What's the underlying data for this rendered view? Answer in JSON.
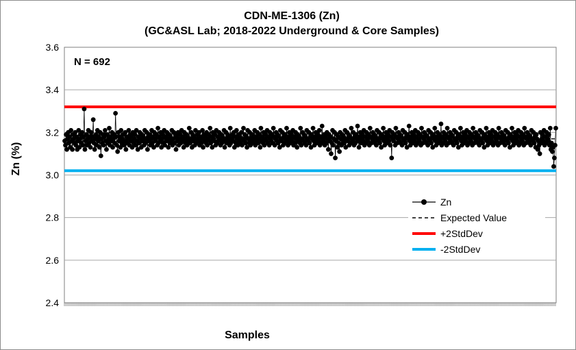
{
  "chart_data": {
    "type": "line",
    "title": "CDN-ME-1306 (Zn)",
    "subtitle": "(GC&ASL Lab; 2018-2022 Underground & Core Samples)",
    "xlabel": "Samples",
    "ylabel": "Zn (%)",
    "ylim": [
      2.4,
      3.6
    ],
    "y_ticks": [
      "2.4",
      "2.6",
      "2.8",
      "3.0",
      "3.2",
      "3.4",
      "3.6"
    ],
    "grid": true,
    "legend_position": "lower-right",
    "annotation": "N = 692",
    "n_samples": 692,
    "series": [
      {
        "name": "Zn",
        "color": "#000000",
        "marker": "circle",
        "values": [
          3.16,
          3.14,
          3.19,
          3.12,
          3.17,
          3.2,
          3.15,
          3.18,
          3.13,
          3.21,
          3.16,
          3.12,
          3.19,
          3.17,
          3.15,
          3.2,
          3.14,
          3.18,
          3.12,
          3.16,
          3.21,
          3.13,
          3.17,
          3.19,
          3.15,
          3.2,
          3.14,
          3.18,
          3.31,
          3.12,
          3.16,
          3.19,
          3.14,
          3.17,
          3.21,
          3.15,
          3.18,
          3.13,
          3.2,
          3.16,
          3.18,
          3.26,
          3.15,
          3.12,
          3.17,
          3.19,
          3.14,
          3.21,
          3.16,
          3.18,
          3.13,
          3.2,
          3.09,
          3.17,
          3.15,
          3.19,
          3.14,
          3.18,
          3.21,
          3.16,
          3.12,
          3.19,
          3.15,
          3.17,
          3.22,
          3.14,
          3.18,
          3.16,
          3.2,
          3.13,
          3.17,
          3.19,
          3.15,
          3.29,
          3.18,
          3.14,
          3.11,
          3.2,
          3.16,
          3.18,
          3.13,
          3.21,
          3.15,
          3.17,
          3.19,
          3.14,
          3.16,
          3.2,
          3.12,
          3.18,
          3.15,
          3.17,
          3.21,
          3.14,
          3.19,
          3.16,
          3.18,
          3.13,
          3.2,
          3.15,
          3.17,
          3.19,
          3.14,
          3.21,
          3.16,
          3.12,
          3.18,
          3.15,
          3.2,
          3.17,
          3.13,
          3.19,
          3.16,
          3.18,
          3.14,
          3.21,
          3.15,
          3.17,
          3.2,
          3.12,
          3.18,
          3.16,
          3.19,
          3.14,
          3.17,
          3.21,
          3.15,
          3.18,
          3.13,
          3.2,
          3.16,
          3.17,
          3.19,
          3.14,
          3.22,
          3.15,
          3.18,
          3.16,
          3.2,
          3.13,
          3.17,
          3.19,
          3.15,
          3.21,
          3.14,
          3.18,
          3.16,
          3.2,
          3.17,
          3.13,
          3.19,
          3.15,
          3.18,
          3.16,
          3.21,
          3.14,
          3.17,
          3.2,
          3.15,
          3.19,
          3.12,
          3.18,
          3.16,
          3.2,
          3.14,
          3.17,
          3.19,
          3.15,
          3.21,
          3.16,
          3.18,
          3.13,
          3.2,
          3.17,
          3.15,
          3.19,
          3.14,
          3.18,
          3.16,
          3.22,
          3.15,
          3.17,
          3.2,
          3.13,
          3.19,
          3.16,
          3.18,
          3.14,
          3.21,
          3.15,
          3.17,
          3.19,
          3.16,
          3.2,
          3.14,
          3.18,
          3.15,
          3.17,
          3.21,
          3.13,
          3.19,
          3.16,
          3.18,
          3.15,
          3.2,
          3.14,
          3.17,
          3.19,
          3.16,
          3.22,
          3.15,
          3.18,
          3.13,
          3.2,
          3.17,
          3.16,
          3.19,
          3.14,
          3.21,
          3.15,
          3.18,
          3.16,
          3.2,
          3.17,
          3.14,
          3.19,
          3.15,
          3.18,
          3.16,
          3.21,
          3.13,
          3.17,
          3.2,
          3.15,
          3.19,
          3.16,
          3.18,
          3.14,
          3.22,
          3.15,
          3.17,
          3.19,
          3.16,
          3.2,
          3.13,
          3.18,
          3.15,
          3.21,
          3.17,
          3.14,
          3.19,
          3.16,
          3.18,
          3.15,
          3.2,
          3.14,
          3.17,
          3.22,
          3.16,
          3.19,
          3.15,
          3.18,
          3.13,
          3.21,
          3.17,
          3.15,
          3.2,
          3.14,
          3.18,
          3.16,
          3.19,
          3.15,
          3.17,
          3.21,
          3.14,
          3.18,
          3.16,
          3.2,
          3.15,
          3.17,
          3.19,
          3.13,
          3.22,
          3.16,
          3.18,
          3.15,
          3.2,
          3.14,
          3.17,
          3.19,
          3.16,
          3.21,
          3.15,
          3.18,
          3.14,
          3.2,
          3.17,
          3.16,
          3.19,
          3.15,
          3.22,
          3.18,
          3.14,
          3.17,
          3.2,
          3.16,
          3.19,
          3.15,
          3.18,
          3.13,
          3.21,
          3.17,
          3.16,
          3.2,
          3.14,
          3.18,
          3.15,
          3.19,
          3.17,
          3.22,
          3.16,
          3.14,
          3.18,
          3.2,
          3.15,
          3.17,
          3.19,
          3.16,
          3.21,
          3.14,
          3.18,
          3.15,
          3.2,
          3.17,
          3.13,
          3.19,
          3.16,
          3.18,
          3.15,
          3.22,
          3.14,
          3.17,
          3.2,
          3.16,
          3.19,
          3.15,
          3.18,
          3.14,
          3.21,
          3.17,
          3.16,
          3.2,
          3.15,
          3.18,
          3.13,
          3.19,
          3.17,
          3.22,
          3.16,
          3.14,
          3.18,
          3.2,
          3.15,
          3.17,
          3.19,
          3.16,
          3.21,
          3.14,
          3.18,
          3.15,
          3.23,
          3.17,
          3.16,
          3.19,
          3.14,
          3.18,
          3.15,
          3.2,
          3.17,
          3.12,
          3.19,
          3.16,
          3.18,
          3.1,
          3.15,
          3.21,
          3.14,
          3.17,
          3.2,
          3.08,
          3.16,
          3.19,
          3.13,
          3.18,
          3.15,
          3.11,
          3.2,
          3.17,
          3.14,
          3.19,
          3.16,
          3.18,
          3.15,
          3.21,
          3.13,
          3.17,
          3.2,
          3.16,
          3.19,
          3.14,
          3.18,
          3.15,
          3.22,
          3.17,
          3.16,
          3.2,
          3.14,
          3.18,
          3.15,
          3.19,
          3.17,
          3.23,
          3.16,
          3.13,
          3.18,
          3.2,
          3.15,
          3.17,
          3.19,
          3.16,
          3.21,
          3.14,
          3.18,
          3.15,
          3.2,
          3.17,
          3.16,
          3.19,
          3.14,
          3.22,
          3.18,
          3.15,
          3.17,
          3.2,
          3.16,
          3.19,
          3.15,
          3.18,
          3.14,
          3.21,
          3.17,
          3.16,
          3.2,
          3.15,
          3.18,
          3.13,
          3.19,
          3.17,
          3.22,
          3.16,
          3.14,
          3.18,
          3.2,
          3.15,
          3.17,
          3.19,
          3.16,
          3.21,
          3.14,
          3.18,
          3.08,
          3.2,
          3.17,
          3.16,
          3.19,
          3.14,
          3.22,
          3.18,
          3.15,
          3.17,
          3.2,
          3.16,
          3.19,
          3.15,
          3.18,
          3.14,
          3.21,
          3.17,
          3.16,
          3.2,
          3.15,
          3.18,
          3.13,
          3.19,
          3.17,
          3.23,
          3.16,
          3.14,
          3.18,
          3.2,
          3.15,
          3.17,
          3.19,
          3.16,
          3.21,
          3.14,
          3.18,
          3.15,
          3.2,
          3.17,
          3.16,
          3.19,
          3.14,
          3.22,
          3.18,
          3.15,
          3.17,
          3.2,
          3.16,
          3.19,
          3.15,
          3.18,
          3.14,
          3.21,
          3.17,
          3.16,
          3.2,
          3.15,
          3.18,
          3.13,
          3.19,
          3.17,
          3.22,
          3.16,
          3.14,
          3.18,
          3.2,
          3.15,
          3.17,
          3.19,
          3.16,
          3.24,
          3.14,
          3.18,
          3.15,
          3.2,
          3.17,
          3.16,
          3.19,
          3.14,
          3.22,
          3.18,
          3.15,
          3.17,
          3.2,
          3.16,
          3.19,
          3.15,
          3.18,
          3.14,
          3.21,
          3.17,
          3.16,
          3.2,
          3.15,
          3.18,
          3.13,
          3.19,
          3.17,
          3.22,
          3.16,
          3.14,
          3.18,
          3.2,
          3.15,
          3.17,
          3.19,
          3.16,
          3.21,
          3.14,
          3.18,
          3.15,
          3.2,
          3.17,
          3.16,
          3.19,
          3.14,
          3.22,
          3.18,
          3.15,
          3.17,
          3.2,
          3.16,
          3.19,
          3.15,
          3.18,
          3.14,
          3.21,
          3.17,
          3.16,
          3.2,
          3.15,
          3.18,
          3.13,
          3.19,
          3.17,
          3.22,
          3.16,
          3.14,
          3.18,
          3.2,
          3.15,
          3.17,
          3.19,
          3.16,
          3.21,
          3.14,
          3.18,
          3.15,
          3.2,
          3.17,
          3.16,
          3.19,
          3.14,
          3.22,
          3.18,
          3.15,
          3.17,
          3.2,
          3.16,
          3.19,
          3.15,
          3.18,
          3.14,
          3.21,
          3.17,
          3.16,
          3.2,
          3.15,
          3.18,
          3.13,
          3.19,
          3.17,
          3.22,
          3.16,
          3.14,
          3.18,
          3.2,
          3.15,
          3.17,
          3.19,
          3.16,
          3.21,
          3.14,
          3.18,
          3.15,
          3.2,
          3.17,
          3.16,
          3.19,
          3.14,
          3.22,
          3.18,
          3.15,
          3.17,
          3.2,
          3.16,
          3.19,
          3.15,
          3.18,
          3.14,
          3.21,
          3.17,
          3.16,
          3.2,
          3.15,
          3.18,
          3.13,
          3.19,
          3.17,
          3.12,
          3.16,
          3.14,
          3.1,
          3.2,
          3.15,
          3.17,
          3.19,
          3.16,
          3.21,
          3.14,
          3.18,
          3.15,
          3.2,
          3.17,
          3.16,
          3.19,
          3.14,
          3.22,
          3.12,
          3.15,
          3.11,
          3.13,
          3.04,
          3.08,
          3.14,
          3.22
        ]
      },
      {
        "name": "Expected Value",
        "color": "#000000",
        "style": "dashed",
        "value": 3.17
      },
      {
        "name": "+2StdDev",
        "color": "#ff0000",
        "value": 3.32
      },
      {
        "name": "-2StdDev",
        "color": "#00b0f0",
        "value": 3.02
      }
    ]
  }
}
